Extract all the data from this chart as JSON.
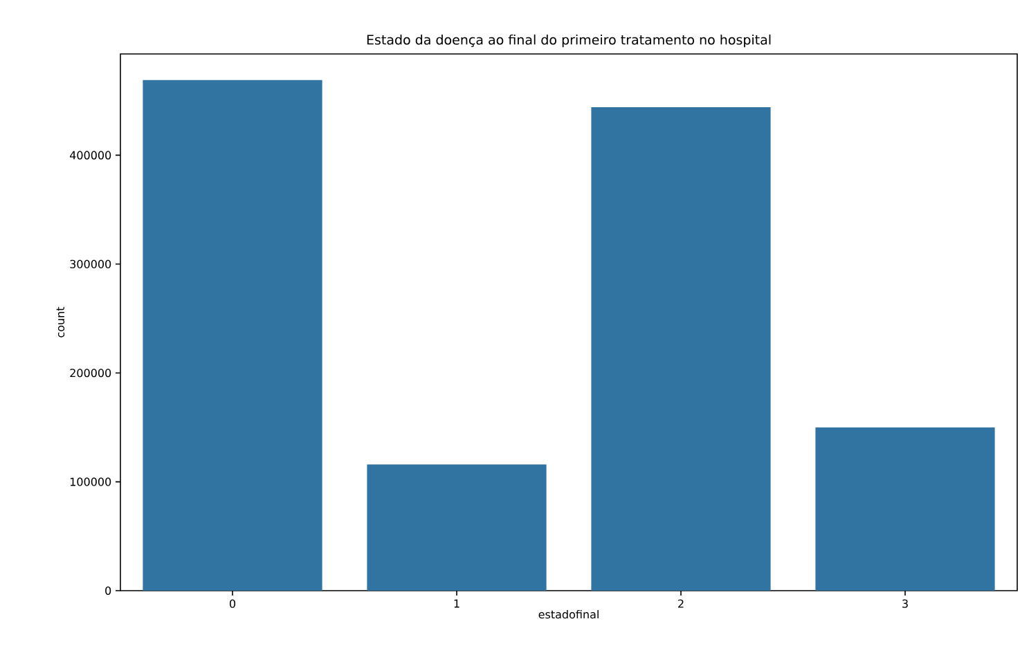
{
  "chart_data": {
    "type": "bar",
    "title": "Estado da doença ao final do primeiro tratamento no hospital",
    "xlabel": "estadofinal",
    "ylabel": "count",
    "categories": [
      "0",
      "1",
      "2",
      "3"
    ],
    "values": [
      469000,
      116000,
      444000,
      150000
    ],
    "color": "#3274a1",
    "ylim": [
      0,
      493000
    ],
    "yticks": [
      0,
      100000,
      200000,
      300000,
      400000
    ],
    "grid": false
  }
}
